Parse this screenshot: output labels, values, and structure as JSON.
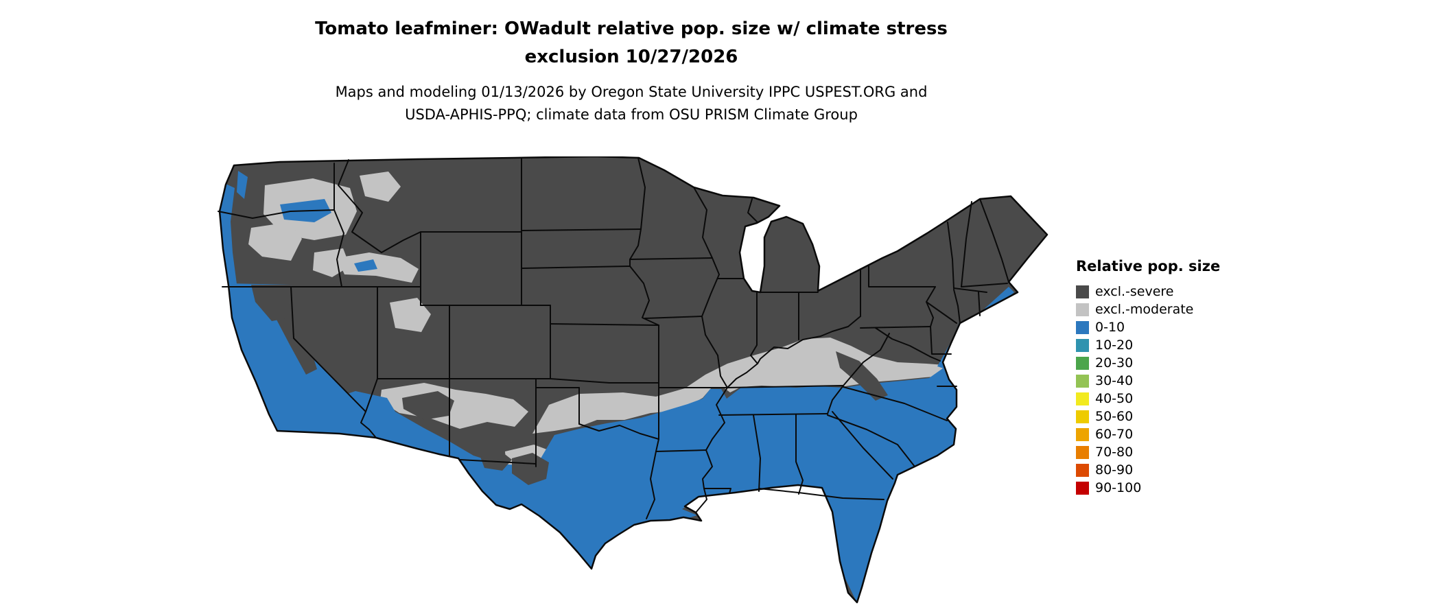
{
  "title": {
    "line1": "Tomato leafminer: OWadult relative pop. size w/ climate stress",
    "line2": "exclusion 10/27/2026"
  },
  "subtitle": {
    "line1": "Maps and modeling 01/13/2026 by Oregon State University IPPC USPEST.ORG and",
    "line2": "USDA-APHIS-PPQ; climate data from OSU PRISM Climate Group"
  },
  "legend": {
    "title": "Relative pop. size",
    "items": [
      {
        "label": "excl.-severe",
        "color": "#4a4a4a"
      },
      {
        "label": "excl.-moderate",
        "color": "#c3c3c3"
      },
      {
        "label": "0-10",
        "color": "#2c78be"
      },
      {
        "label": "10-20",
        "color": "#2f93af"
      },
      {
        "label": "20-30",
        "color": "#4ba54b"
      },
      {
        "label": "30-40",
        "color": "#93c354"
      },
      {
        "label": "40-50",
        "color": "#f2ea1f"
      },
      {
        "label": "50-60",
        "color": "#eecb00"
      },
      {
        "label": "60-70",
        "color": "#eda400"
      },
      {
        "label": "70-80",
        "color": "#e87e00"
      },
      {
        "label": "80-90",
        "color": "#dc4a02"
      },
      {
        "label": "90-100",
        "color": "#c40000"
      }
    ]
  },
  "chart_data": {
    "type": "heatmap",
    "title": "Tomato leafminer: OWadult relative pop. size w/ climate stress exclusion 10/27/2026",
    "legend_title": "Relative pop. size",
    "categories": [
      "excl.-severe",
      "excl.-moderate",
      "0-10",
      "10-20",
      "20-30",
      "30-40",
      "40-50",
      "50-60",
      "60-70",
      "70-80",
      "80-90",
      "90-100"
    ],
    "categories_visible_on_map": [
      "excl.-severe",
      "excl.-moderate",
      "0-10"
    ],
    "map_summary": [
      {
        "region": "Northern US, Rocky Mountains, Great Basin, Midwest and Northeast interior",
        "category": "excl.-severe"
      },
      {
        "region": "Central transition band from Kansas through Missouri, Ohio Valley to Virginia, plus intermountain west patches",
        "category": "excl.-moderate"
      },
      {
        "region": "Southern US: Texas, Gulf states, Florida, Southeast and southern Atlantic coast, California and Pacific coastal strip, southern Arizona/New Mexico",
        "category": "0-10"
      }
    ]
  }
}
